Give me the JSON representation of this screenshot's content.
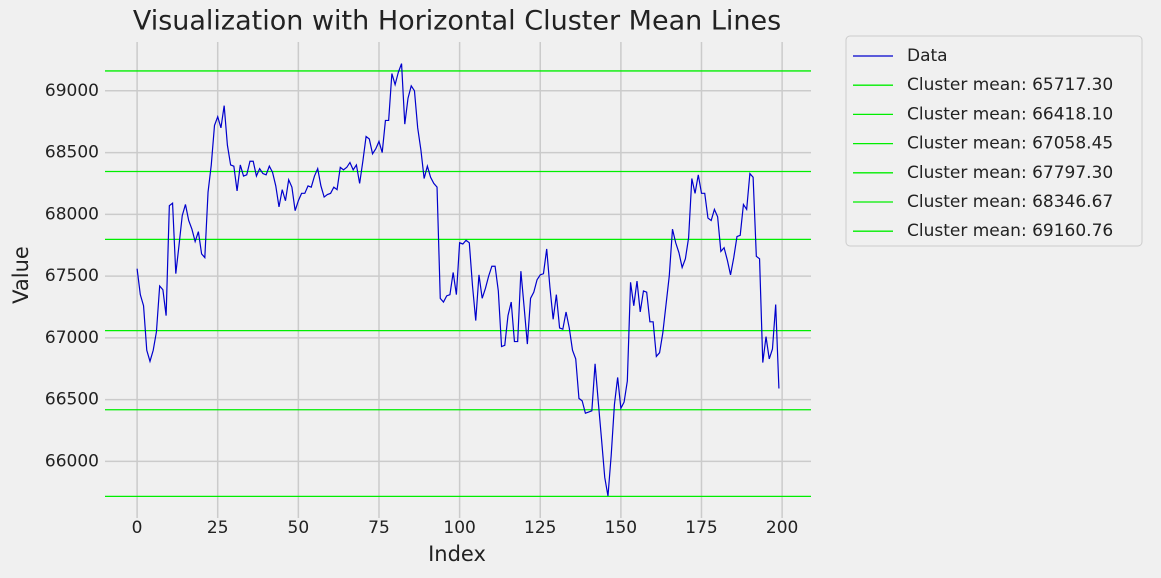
{
  "chart_data": {
    "type": "line",
    "title": "Visualization with Horizontal Cluster Mean Lines",
    "x_label": "Index",
    "y_label": "Value",
    "xlim": [
      -9.95,
      208.95
    ],
    "xticks": [
      0,
      25,
      50,
      75,
      100,
      125,
      150,
      175,
      200
    ],
    "ylim": [
      65542,
      69395
    ],
    "yticks": [
      66000,
      66500,
      67000,
      67500,
      68000,
      68500,
      69000
    ],
    "grid": true,
    "legend": "outside upper right",
    "series": [
      {
        "name": "Data",
        "color": "#0000cc",
        "values": [
          67560,
          67350,
          67260,
          66900,
          66810,
          66900,
          67050,
          67420,
          67390,
          67180,
          68070,
          68090,
          67520,
          67750,
          67990,
          68080,
          67950,
          67880,
          67780,
          67860,
          67680,
          67650,
          68180,
          68400,
          68720,
          68790,
          68700,
          68880,
          68560,
          68400,
          68390,
          68190,
          68400,
          68310,
          68320,
          68430,
          68430,
          68310,
          68370,
          68330,
          68320,
          68390,
          68340,
          68230,
          68060,
          68200,
          68110,
          68280,
          68220,
          68030,
          68110,
          68170,
          68170,
          68230,
          68220,
          68310,
          68370,
          68230,
          68140,
          68160,
          68170,
          68220,
          68200,
          68380,
          68360,
          68380,
          68420,
          68360,
          68400,
          68250,
          68430,
          68630,
          68610,
          68490,
          68530,
          68590,
          68500,
          68760,
          68760,
          69140,
          69050,
          69150,
          69220,
          68730,
          68940,
          69040,
          69000,
          68700,
          68520,
          68290,
          68390,
          68300,
          68250,
          68220,
          67320,
          67290,
          67340,
          67350,
          67530,
          67350,
          67770,
          67760,
          67790,
          67770,
          67420,
          67140,
          67510,
          67320,
          67400,
          67500,
          67580,
          67580,
          67380,
          66930,
          66940,
          67180,
          67290,
          66970,
          66970,
          67540,
          67250,
          66950,
          67320,
          67370,
          67470,
          67510,
          67520,
          67720,
          67410,
          67150,
          67350,
          67080,
          67070,
          67210,
          67080,
          66900,
          66830,
          66510,
          66490,
          66390,
          66400,
          66410,
          66790,
          66480,
          66180,
          65870,
          65720,
          66050,
          66460,
          66680,
          66430,
          66480,
          66650,
          67450,
          67260,
          67460,
          67210,
          67380,
          67370,
          67130,
          67130,
          66850,
          66880,
          67040,
          67270,
          67500,
          67880,
          67770,
          67690,
          67570,
          67640,
          67810,
          68290,
          68170,
          68320,
          68170,
          68170,
          67970,
          67950,
          68040,
          67980,
          67700,
          67730,
          67630,
          67510,
          67650,
          67820,
          67830,
          68080,
          68040,
          68330,
          68300,
          67660,
          67640,
          66800,
          67010,
          66830,
          66910,
          67270,
          66590
        ]
      }
    ],
    "hlines": [
      {
        "name": "Cluster mean: 65717.30",
        "value": 65717.3,
        "color": "#00ee00"
      },
      {
        "name": "Cluster mean: 66418.10",
        "value": 66418.1,
        "color": "#00ee00"
      },
      {
        "name": "Cluster mean: 67058.45",
        "value": 67058.45,
        "color": "#00ee00"
      },
      {
        "name": "Cluster mean: 67797.30",
        "value": 67797.3,
        "color": "#00ee00"
      },
      {
        "name": "Cluster mean: 68346.67",
        "value": 68346.67,
        "color": "#00ee00"
      },
      {
        "name": "Cluster mean: 69160.76",
        "value": 69160.76,
        "color": "#00ee00"
      }
    ]
  }
}
